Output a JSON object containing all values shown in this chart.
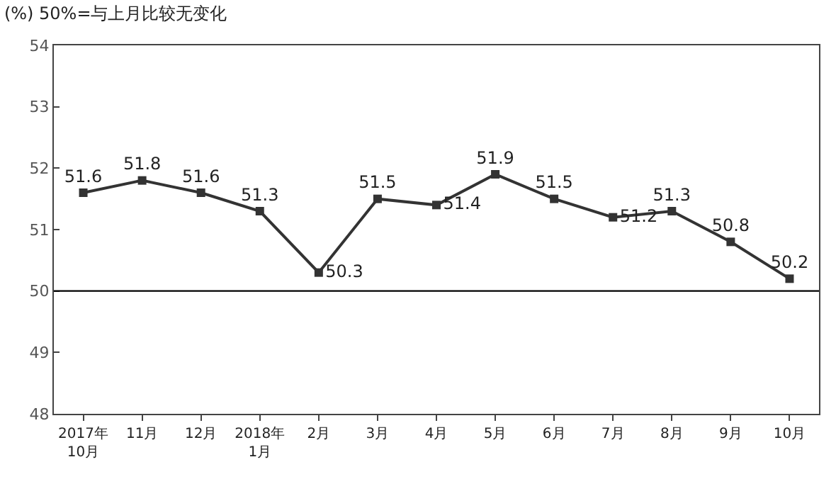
{
  "chart_data": {
    "type": "line",
    "title": "(%) 50%=与上月比较无变化",
    "categories": [
      "2017年\n10月",
      "11月",
      "12月",
      "2018年\n1月",
      "2月",
      "3月",
      "4月",
      "5月",
      "6月",
      "7月",
      "8月",
      "9月",
      "10月"
    ],
    "series": [
      {
        "color": "#333333",
        "values": [
          51.6,
          51.8,
          51.6,
          51.3,
          50.3,
          51.5,
          51.4,
          51.9,
          51.5,
          51.2,
          51.3,
          50.8,
          50.2
        ]
      }
    ],
    "ylim": [
      48,
      54
    ],
    "yticks": [
      48,
      49,
      50,
      51,
      52,
      53,
      54
    ],
    "ref_lines": [
      {
        "axis": "y",
        "value": 50,
        "color": "#000000"
      }
    ],
    "grid": false,
    "marker": "square",
    "line_style": "solid",
    "data_labels": true
  }
}
